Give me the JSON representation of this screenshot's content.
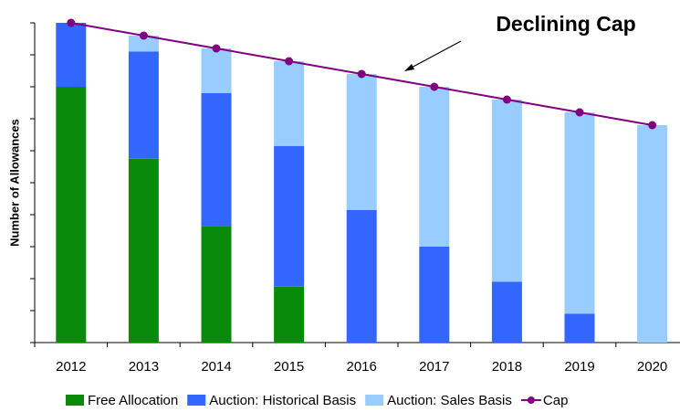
{
  "chart_data": {
    "type": "bar",
    "stacked": true,
    "y_label": "Number of Allowances",
    "annotation": "Declining Cap",
    "categories": [
      "2012",
      "2013",
      "2014",
      "2015",
      "2016",
      "2017",
      "2018",
      "2019",
      "2020"
    ],
    "series": [
      {
        "name": "Free Allocation",
        "color": "#0a8a0a",
        "values": [
          8.0,
          5.75,
          3.65,
          1.75,
          0,
          0,
          0,
          0,
          0
        ]
      },
      {
        "name": "Auction: Historical Basis",
        "color": "#3366ff",
        "values": [
          2.0,
          3.35,
          4.15,
          4.4,
          4.15,
          3.0,
          1.9,
          0.9,
          0
        ]
      },
      {
        "name": "Auction: Sales Basis",
        "color": "#99ccff",
        "values": [
          0,
          0.5,
          1.4,
          2.65,
          4.25,
          5.0,
          5.7,
          6.3,
          6.8
        ]
      },
      {
        "name": "Cap",
        "type": "line",
        "color": "#800080",
        "values": [
          10,
          9.6,
          9.2,
          8.8,
          8.4,
          8.0,
          7.6,
          7.2,
          6.8
        ]
      }
    ],
    "ylim": [
      0,
      10
    ],
    "yticks": [
      0,
      1,
      2,
      3,
      4,
      5,
      6,
      7,
      8,
      9,
      10
    ],
    "legend": "bottom"
  }
}
